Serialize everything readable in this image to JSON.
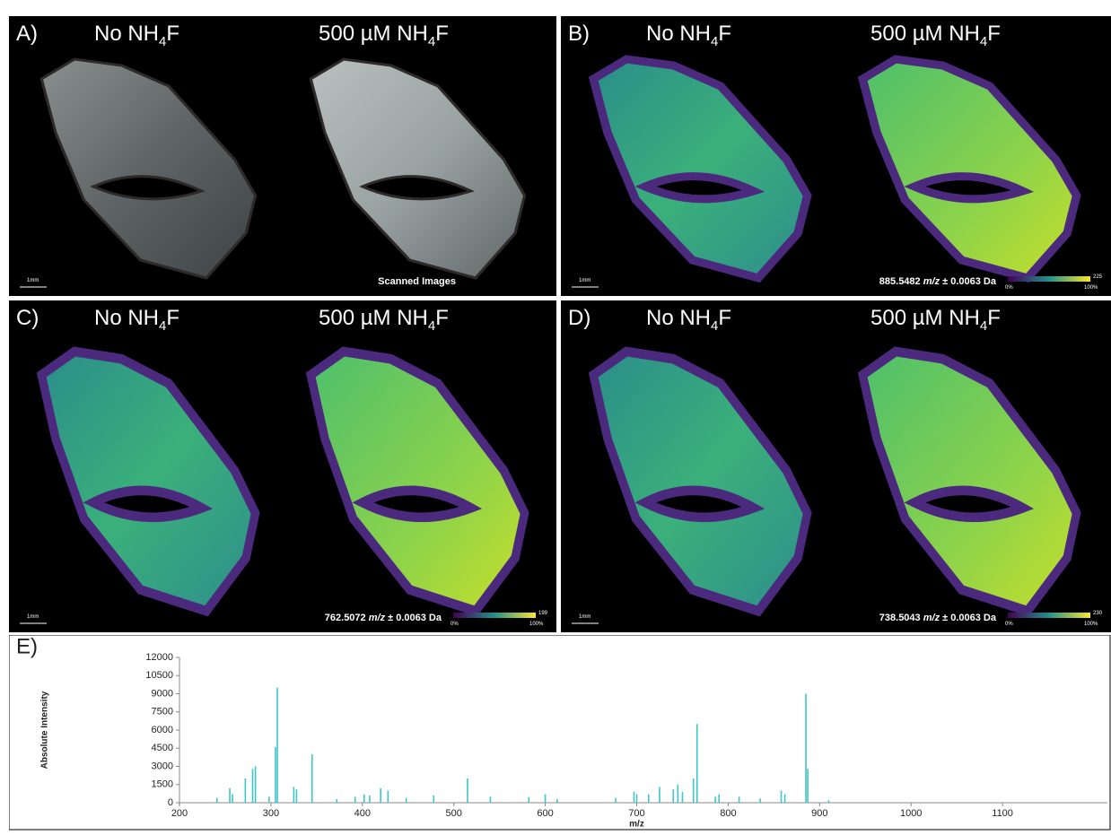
{
  "panels": [
    {
      "letter": "A)",
      "left_label": {
        "pre": "No NH",
        "sub": "4",
        "post": "F"
      },
      "right_label": {
        "pre": "500 µM NH",
        "sub": "4",
        "post": "F"
      },
      "scale_label": "1mm",
      "caption": {
        "text": "Scanned Images"
      }
    },
    {
      "letter": "B)",
      "left_label": {
        "pre": "No NH",
        "sub": "4",
        "post": "F"
      },
      "right_label": {
        "pre": "500 µM NH",
        "sub": "4",
        "post": "F"
      },
      "scale_label": "1mm",
      "caption": {
        "mz": "885.5482",
        "unit": "m/z",
        "tol": "± 0.0063 Da"
      },
      "colorbar": {
        "min": "0%",
        "max": "100%",
        "top": "225"
      }
    },
    {
      "letter": "C)",
      "left_label": {
        "pre": "No NH",
        "sub": "4",
        "post": "F"
      },
      "right_label": {
        "pre": "500 µM NH",
        "sub": "4",
        "post": "F"
      },
      "scale_label": "1mm",
      "caption": {
        "mz": "762.5072",
        "unit": "m/z",
        "tol": "± 0.0063 Da"
      },
      "colorbar": {
        "min": "0%",
        "max": "100%",
        "top": "199"
      }
    },
    {
      "letter": "D)",
      "left_label": {
        "pre": "No NH",
        "sub": "4",
        "post": "F"
      },
      "right_label": {
        "pre": "500 µM NH",
        "sub": "4",
        "post": "F"
      },
      "scale_label": "1mm",
      "caption": {
        "mz": "738.5043",
        "unit": "m/z",
        "tol": "± 0.0063 Da"
      },
      "colorbar": {
        "min": "0%",
        "max": "100%",
        "top": "230"
      }
    }
  ],
  "chart_data": {
    "type": "spectrum",
    "letter": "E)",
    "xlabel": "m/z",
    "ylabel": "Absolute Intensity",
    "color": "#3ec6c6",
    "x": [
      241,
      255,
      258,
      272,
      280,
      283,
      298,
      305,
      307,
      325,
      328,
      345,
      372,
      392,
      402,
      408,
      420,
      428,
      448,
      478,
      515,
      540,
      582,
      600,
      613,
      677,
      697,
      700,
      713,
      725,
      740,
      745,
      750,
      762,
      766,
      786,
      790,
      812,
      835,
      858,
      862,
      885,
      887,
      910
    ],
    "values": [
      400,
      1200,
      700,
      2000,
      2800,
      3000,
      500,
      4600,
      9500,
      1300,
      1100,
      4000,
      300,
      500,
      700,
      600,
      1200,
      1000,
      400,
      600,
      2000,
      500,
      450,
      700,
      300,
      400,
      900,
      700,
      700,
      1300,
      1100,
      1500,
      900,
      2000,
      6500,
      500,
      700,
      500,
      350,
      1000,
      700,
      9000,
      2800,
      200
    ],
    "xlim": [
      200,
      1200
    ],
    "ylim": [
      0,
      12000
    ],
    "xticks": [
      200,
      300,
      400,
      500,
      600,
      700,
      800,
      900,
      1000,
      1100
    ],
    "yticks": [
      0,
      1500,
      3000,
      4500,
      6000,
      7500,
      9000,
      10500,
      12000
    ]
  }
}
